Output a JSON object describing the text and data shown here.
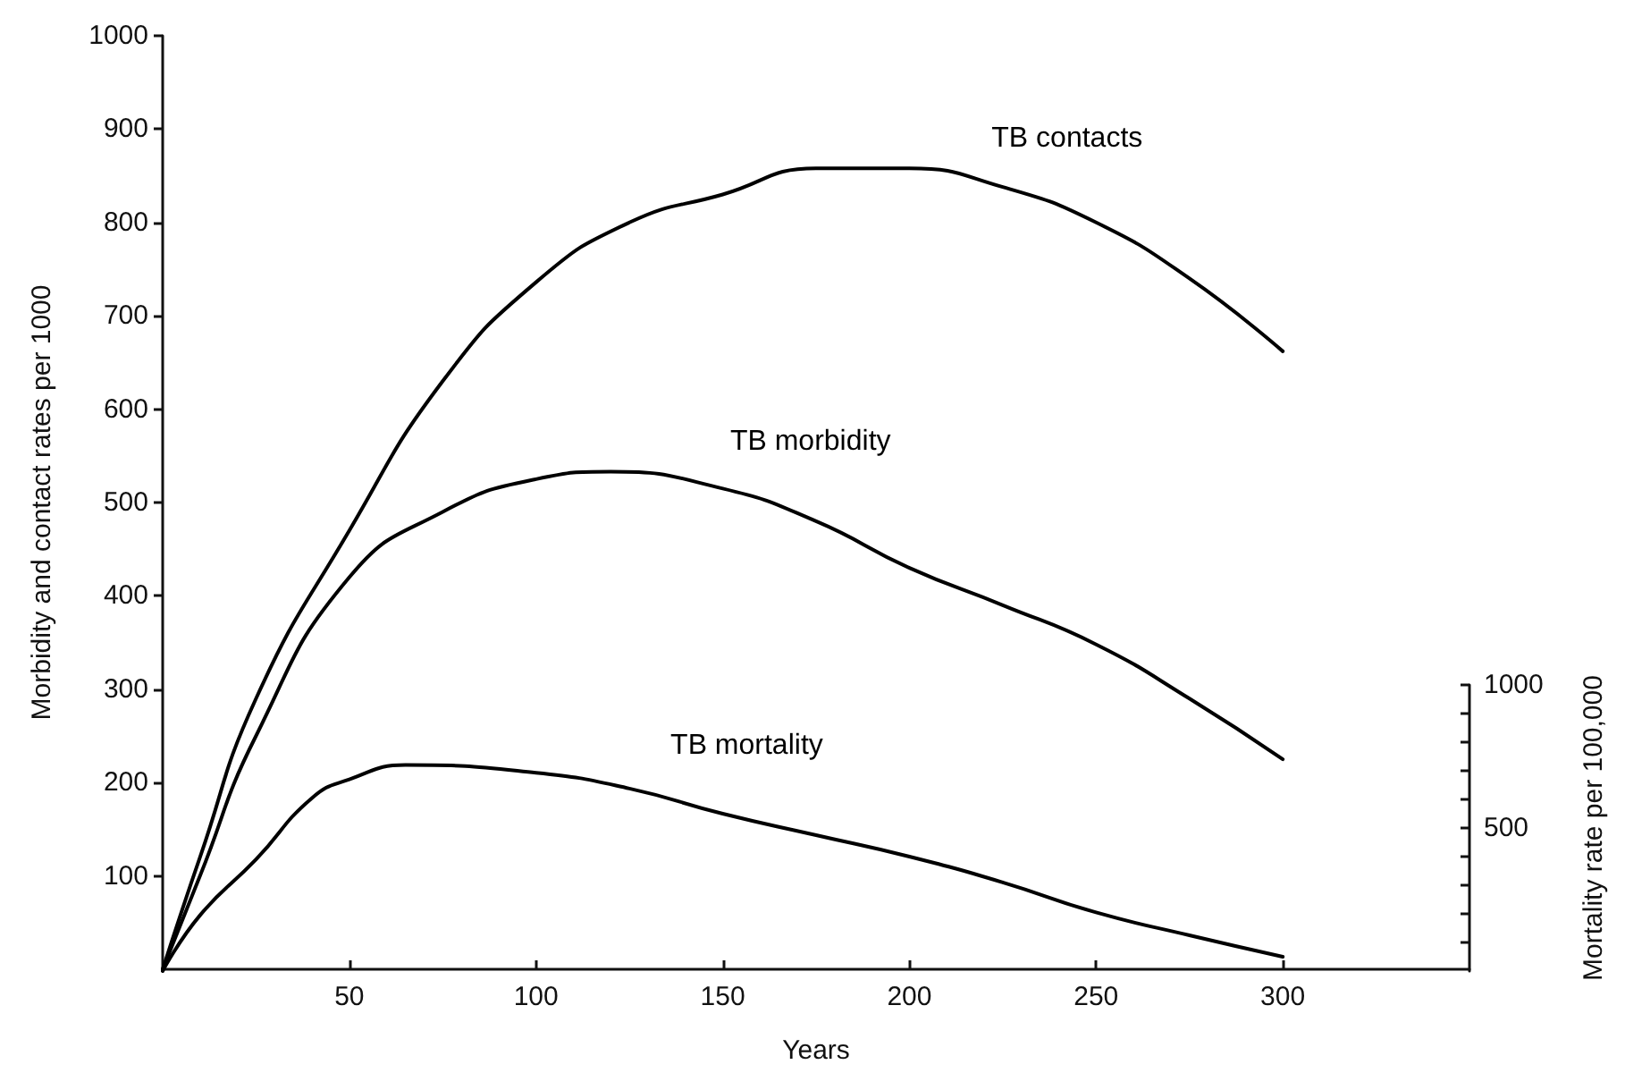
{
  "chart_data": {
    "type": "line",
    "xlabel": "Years",
    "ylabel": "Morbidity and contact rates per 1000",
    "y2label": "Mortality rate per 100,000",
    "xlim": [
      0,
      350
    ],
    "xticks": [
      50,
      100,
      150,
      200,
      250,
      300
    ],
    "ylim": [
      0,
      1000
    ],
    "yticks": [
      100,
      200,
      300,
      400,
      500,
      600,
      700,
      800,
      900,
      1000
    ],
    "y2lim": [
      0,
      1000
    ],
    "y2ticks": [
      {
        "value": 100,
        "label": null
      },
      {
        "value": 200,
        "label": null
      },
      {
        "value": 300,
        "label": null
      },
      {
        "value": 400,
        "label": null
      },
      500,
      {
        "value": 600,
        "label": null
      },
      {
        "value": 700,
        "label": null
      },
      {
        "value": 800,
        "label": null
      },
      {
        "value": 900,
        "label": null
      },
      1000
    ],
    "marker": "none",
    "line_style": "solid",
    "grid": false,
    "series": [
      {
        "name": "TB contacts",
        "color": "#000000",
        "x": [
          0,
          10,
          25,
          50,
          75,
          100,
          125,
          150,
          175,
          200,
          225,
          250,
          275,
          300
        ],
        "values": [
          0,
          120,
          290,
          470,
          630,
          736,
          800,
          830,
          858,
          858,
          838,
          800,
          740,
          662
        ]
      },
      {
        "name": "TB morbidity",
        "color": "#000000",
        "x": [
          0,
          10,
          25,
          50,
          75,
          100,
          120,
          150,
          175,
          200,
          225,
          250,
          275,
          300
        ],
        "values": [
          0,
          100,
          250,
          420,
          490,
          525,
          533,
          515,
          480,
          430,
          390,
          348,
          290,
          225
        ]
      },
      {
        "name": "TB mortality",
        "color": "#000000",
        "axis": "y2",
        "x": [
          0,
          10,
          25,
          40,
          50,
          65,
          100,
          125,
          150,
          175,
          200,
          225,
          250,
          275,
          300
        ],
        "values": [
          0,
          195,
          390,
          605,
          670,
          720,
          693,
          638,
          550,
          475,
          400,
          310,
          205,
          125,
          50
        ]
      }
    ]
  }
}
